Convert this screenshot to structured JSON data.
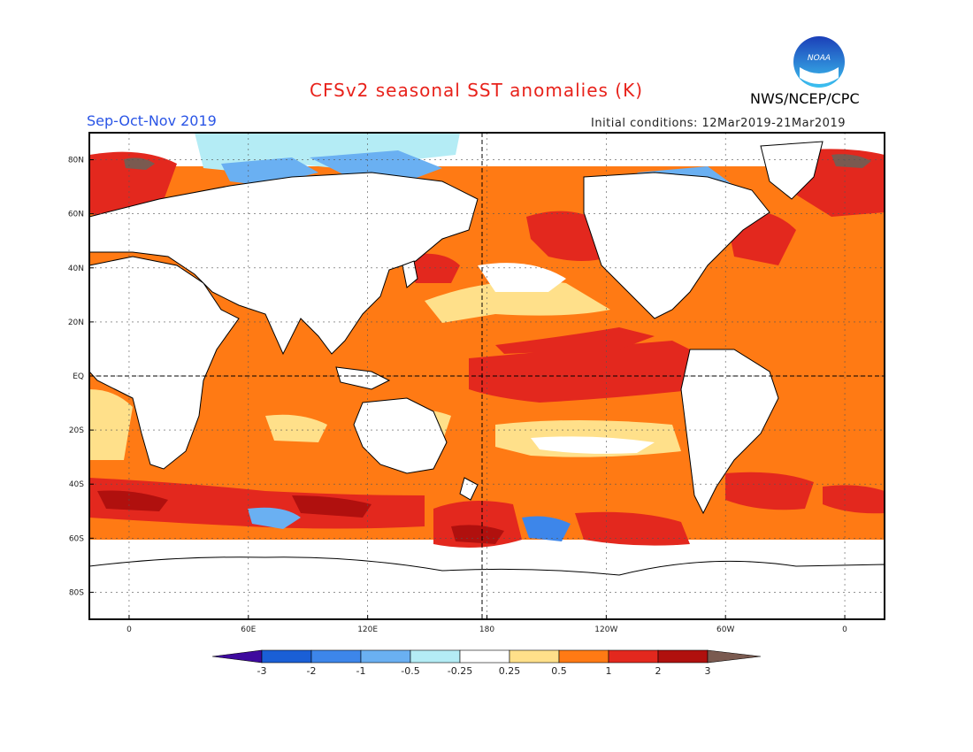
{
  "header": {
    "title": "CFSv2 seasonal SST anomalies (K)",
    "season": "Sep-Oct-Nov 2019",
    "initial_conditions": "Initial conditions: 12Mar2019-21Mar2019",
    "agency": "NWS/NCEP/CPC",
    "logo_text": "NOAA"
  },
  "map": {
    "projection": "cylindrical-equidistant",
    "lon_ticks": [
      "0",
      "60E",
      "120E",
      "180",
      "120W",
      "60W",
      "0"
    ],
    "lat_ticks": [
      "80N",
      "60N",
      "40N",
      "20N",
      "EQ",
      "20S",
      "40S",
      "60S",
      "80S"
    ],
    "reference_lines": [
      "equator",
      "180"
    ]
  },
  "colorbar": {
    "levels": [
      "-3",
      "-2",
      "-1",
      "-0.5",
      "-0.25",
      "0.25",
      "0.5",
      "1",
      "2",
      "3"
    ],
    "colors": [
      "#3e0a9e",
      "#1a5fd6",
      "#3d86ea",
      "#6ab0f2",
      "#b4ecf5",
      "#ffffff",
      "#ffe08a",
      "#ff7a14",
      "#e3281e",
      "#b0100e",
      "#7a5a50"
    ]
  },
  "chart_data": {
    "type": "heatmap",
    "title": "CFSv2 seasonal SST anomalies (K)",
    "xlabel": "",
    "ylabel": "",
    "units": "K",
    "xlim": [
      -20,
      380
    ],
    "ylim": [
      -90,
      90
    ]
  }
}
